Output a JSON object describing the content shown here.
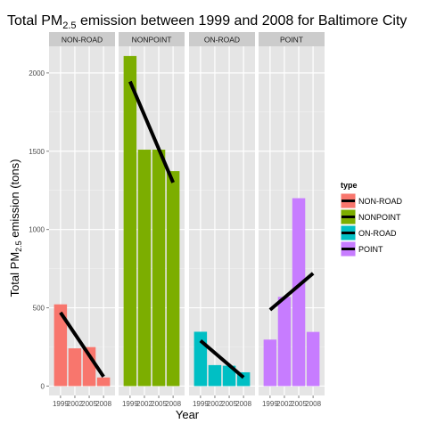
{
  "chart_data": {
    "type": "bar",
    "title_prefix": "Total PM",
    "title_sub": "2.5",
    "title_suffix": "  emission between 1999 and 2008 for Baltimore City",
    "xlabel": "Year",
    "ylabel_prefix": "Total PM",
    "ylabel_sub": "2.5",
    "ylabel_suffix": " emission (tons)",
    "categories": [
      "1999",
      "2002",
      "2005",
      "2008"
    ],
    "ylim": [
      -60,
      2170
    ],
    "yticks": [
      0,
      500,
      1000,
      1500,
      2000
    ],
    "ytick_labels": [
      "0",
      "500",
      "1000",
      "1500",
      "2000"
    ],
    "legend": {
      "title": "type",
      "position": "right"
    },
    "colors": {
      "NON-ROAD": "#F8766D",
      "NONPOINT": "#7CAE00",
      "ON-ROAD": "#00BFC4",
      "POINT": "#C77CFF",
      "panel_bg": "#E5E5E5",
      "strip_bg": "#CCCCCC",
      "trend_line": "#000000"
    },
    "series": [
      {
        "name": "NON-ROAD",
        "values": [
          522,
          241,
          249,
          55
        ],
        "trend": [
          470,
          60
        ]
      },
      {
        "name": "NONPOINT",
        "values": [
          2108,
          1510,
          1510,
          1373
        ],
        "trend": [
          1945,
          1300
        ]
      },
      {
        "name": "ON-ROAD",
        "values": [
          347,
          134,
          130,
          88
        ],
        "trend": [
          290,
          55
        ]
      },
      {
        "name": "POINT",
        "values": [
          297,
          570,
          1200,
          346
        ],
        "trend": [
          487,
          720
        ]
      }
    ]
  }
}
